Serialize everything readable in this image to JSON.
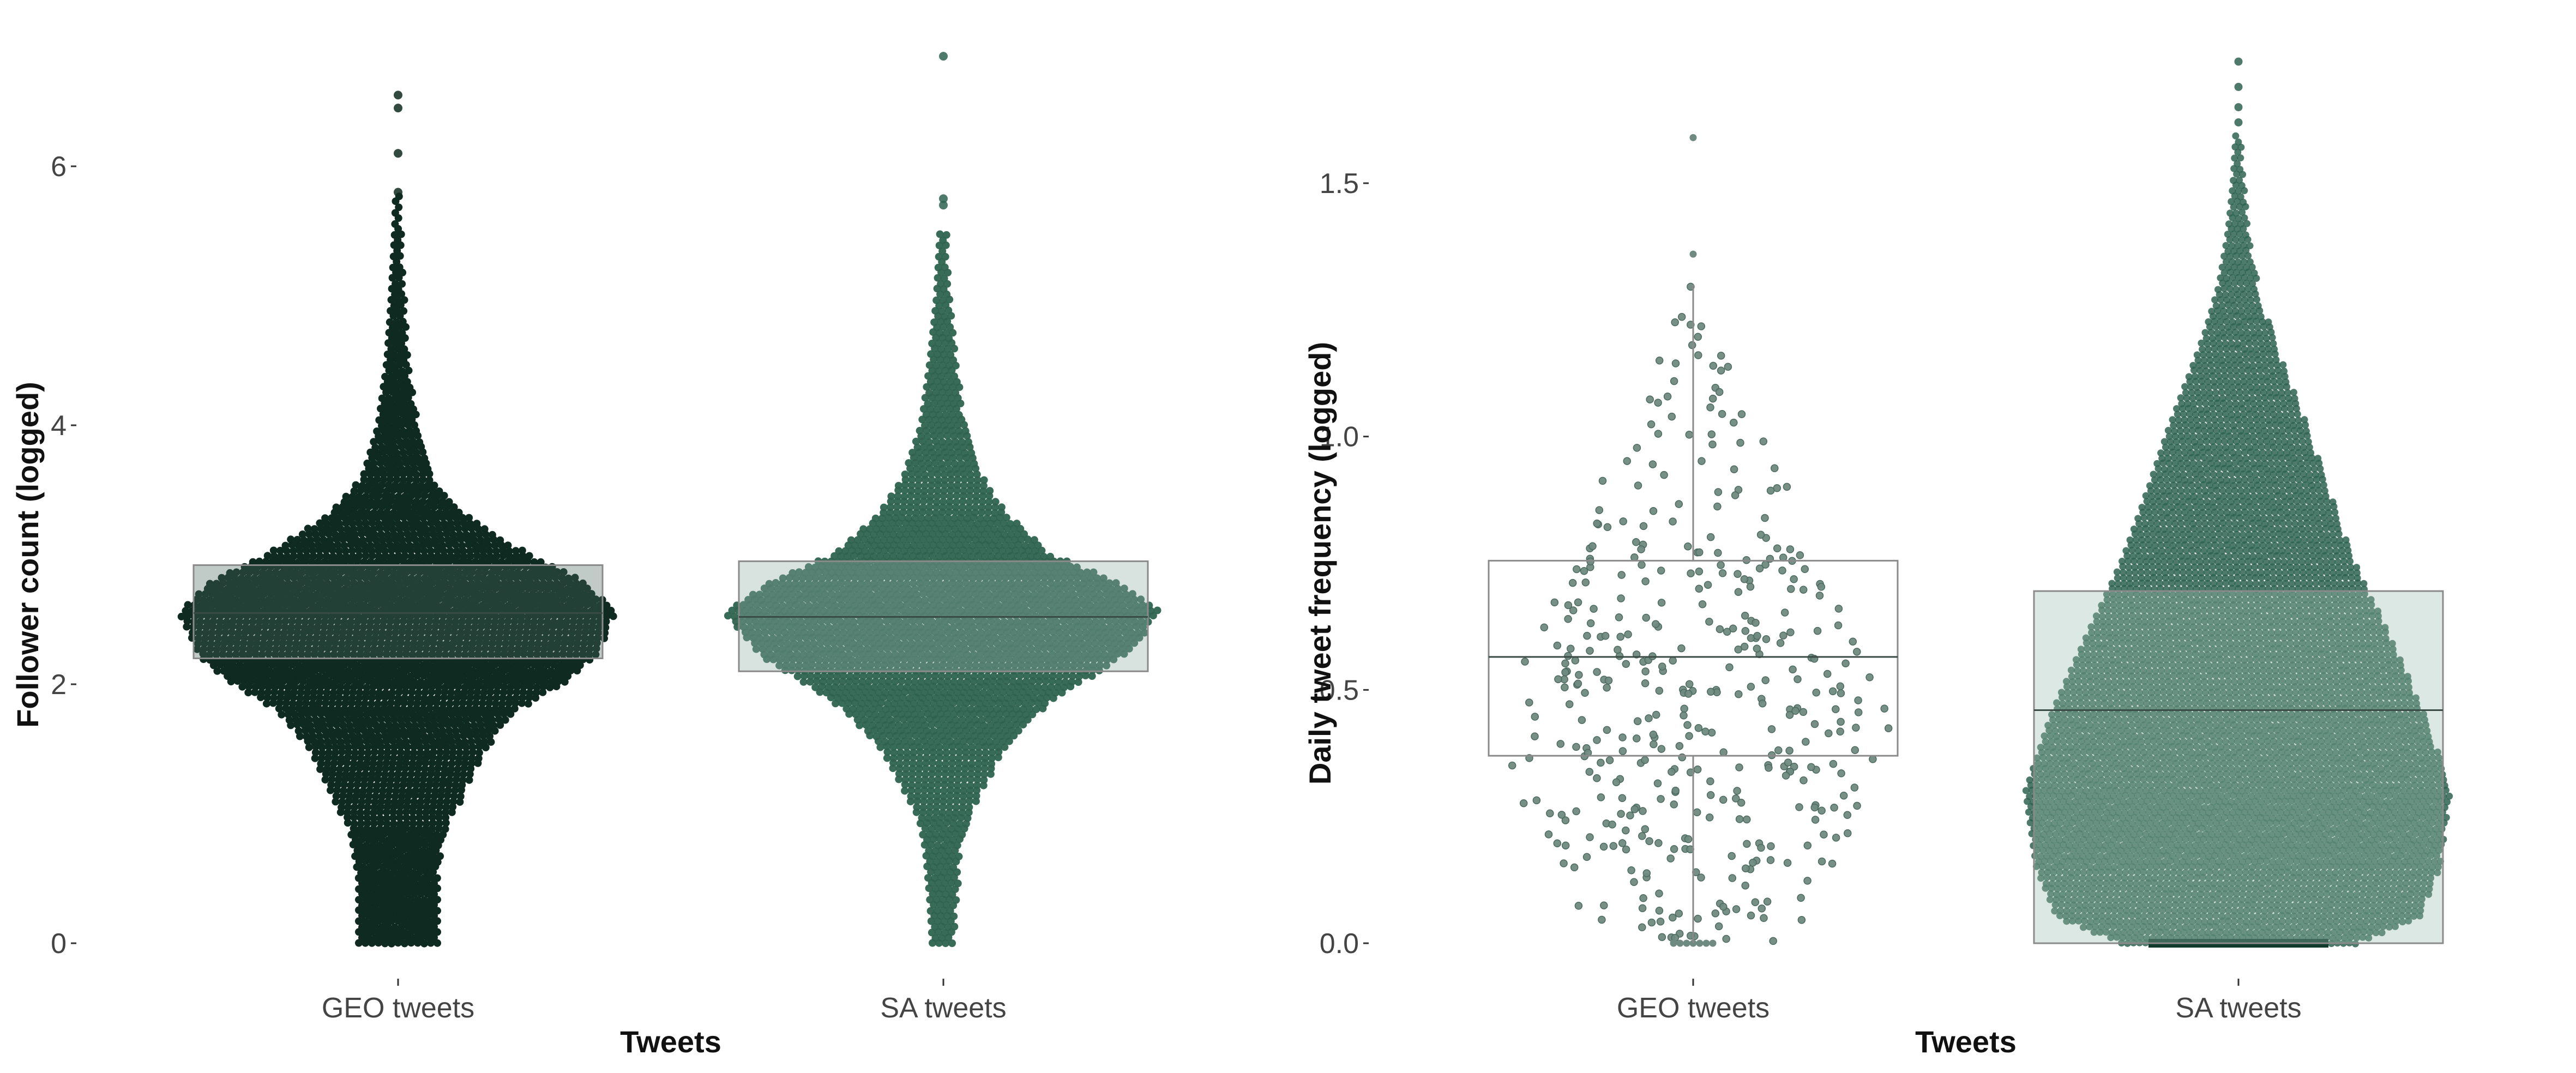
{
  "colors": {
    "geo_follower_fill": "#0f2a20",
    "sa_fill": "#2e6350",
    "geo_freq_point": "#6f8a80",
    "box_line": "#8a8a8a",
    "background": "#ffffff"
  },
  "chart_data": [
    {
      "type": "scatter",
      "subtype": "beeswarm with boxplot",
      "title": "",
      "xlabel": "Tweets",
      "ylabel": "Follower count (logged)",
      "categories": [
        "GEO tweets",
        "SA tweets"
      ],
      "ylim": [
        0,
        7
      ],
      "yticks": [
        0,
        2,
        4,
        6
      ],
      "ytick_labels": [
        "0",
        "2",
        "4",
        "6"
      ],
      "grid": false,
      "series": [
        {
          "category": "GEO tweets",
          "box": {
            "q1": 2.2,
            "median": 2.55,
            "q3": 2.92
          },
          "min": 0.0,
          "max": 6.55,
          "outliers_high": [
            5.8,
            6.1,
            6.45,
            6.55
          ],
          "density_profile": [
            [
              0.0,
              0.18
            ],
            [
              0.3,
              0.18
            ],
            [
              0.5,
              0.18
            ],
            [
              0.7,
              0.2
            ],
            [
              0.9,
              0.22
            ],
            [
              1.0,
              0.26
            ],
            [
              1.5,
              0.4
            ],
            [
              1.8,
              0.55
            ],
            [
              2.0,
              0.75
            ],
            [
              2.2,
              0.9
            ],
            [
              2.55,
              1.0
            ],
            [
              2.8,
              0.85
            ],
            [
              3.0,
              0.6
            ],
            [
              3.3,
              0.32
            ],
            [
              3.6,
              0.16
            ],
            [
              4.0,
              0.09
            ],
            [
              4.5,
              0.05
            ],
            [
              5.0,
              0.03
            ],
            [
              5.5,
              0.015
            ],
            [
              5.8,
              0.01
            ]
          ]
        },
        {
          "category": "SA tweets",
          "box": {
            "q1": 2.1,
            "median": 2.52,
            "q3": 2.95
          },
          "min": 0.0,
          "max": 6.85,
          "outliers_high": [
            5.7,
            5.75,
            6.85
          ],
          "density_profile": [
            [
              0.0,
              0.05
            ],
            [
              0.3,
              0.06
            ],
            [
              0.5,
              0.07
            ],
            [
              0.7,
              0.08
            ],
            [
              0.9,
              0.1
            ],
            [
              1.0,
              0.12
            ],
            [
              1.5,
              0.28
            ],
            [
              1.8,
              0.45
            ],
            [
              2.0,
              0.62
            ],
            [
              2.2,
              0.82
            ],
            [
              2.55,
              1.0
            ],
            [
              2.8,
              0.78
            ],
            [
              3.0,
              0.5
            ],
            [
              3.3,
              0.3
            ],
            [
              3.6,
              0.18
            ],
            [
              4.0,
              0.1
            ],
            [
              4.5,
              0.06
            ],
            [
              5.0,
              0.03
            ],
            [
              5.5,
              0.015
            ]
          ]
        }
      ]
    },
    {
      "type": "scatter",
      "subtype": "beeswarm with boxplot",
      "title": "",
      "xlabel": "Tweets",
      "ylabel": "Daily tweet frequency (logged)",
      "categories": [
        "GEO tweets",
        "SA tweets"
      ],
      "ylim": [
        0,
        1.75
      ],
      "yticks": [
        0.0,
        0.5,
        1.0,
        1.5
      ],
      "ytick_labels": [
        "0.0",
        "0.5",
        "1.0",
        "1.5"
      ],
      "grid": false,
      "series": [
        {
          "category": "GEO tweets",
          "box": {
            "q1": 0.37,
            "median": 0.565,
            "q3": 0.755
          },
          "whisker_low": 0.0,
          "whisker_high": 1.3,
          "outliers_high": [
            1.36,
            1.59
          ],
          "n_points": 420
        },
        {
          "category": "SA tweets",
          "box": {
            "q1": 0.0,
            "median": 0.46,
            "q3": 0.695
          },
          "min": 0.0,
          "max": 1.74,
          "outliers_high": [
            1.62,
            1.65,
            1.69,
            1.74
          ],
          "density_profile": [
            [
              0.0,
              0.55
            ],
            [
              0.05,
              0.85
            ],
            [
              0.15,
              0.95
            ],
            [
              0.3,
              1.0
            ],
            [
              0.45,
              0.88
            ],
            [
              0.6,
              0.72
            ],
            [
              0.75,
              0.55
            ],
            [
              0.9,
              0.42
            ],
            [
              1.0,
              0.34
            ],
            [
              1.1,
              0.25
            ],
            [
              1.2,
              0.16
            ],
            [
              1.3,
              0.09
            ],
            [
              1.4,
              0.05
            ],
            [
              1.5,
              0.025
            ],
            [
              1.6,
              0.012
            ]
          ]
        }
      ]
    }
  ]
}
